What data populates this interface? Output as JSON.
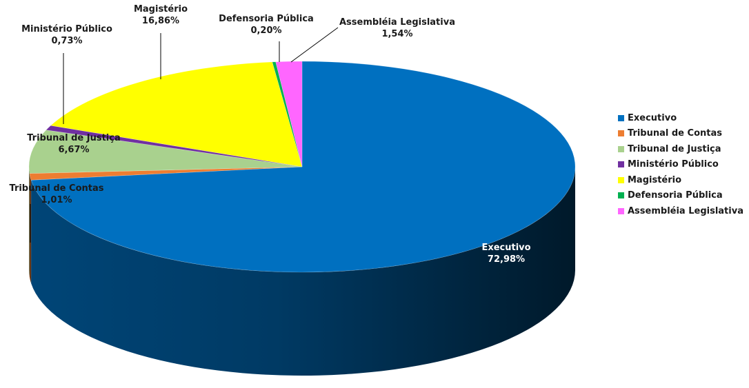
{
  "chart_data": {
    "type": "pie",
    "title": "",
    "slices": [
      {
        "name": "Executivo",
        "value": 72.98,
        "value_label": "72,98%",
        "color": "#0070C0"
      },
      {
        "name": "Tribunal de Contas",
        "value": 1.01,
        "value_label": "1,01%",
        "color": "#ED7D31"
      },
      {
        "name": "Tribunal de Justiça",
        "value": 6.67,
        "value_label": "6,67%",
        "color": "#A9D18E"
      },
      {
        "name": "Ministério Público",
        "value": 0.73,
        "value_label": "0,73%",
        "color": "#7030A0"
      },
      {
        "name": "Magistério",
        "value": 16.86,
        "value_label": "16,86%",
        "color": "#FFFF00"
      },
      {
        "name": "Defensoria Pública",
        "value": 0.2,
        "value_label": "0,20%",
        "color": "#00B050"
      },
      {
        "name": "Assembléia Legislativa",
        "value": 1.54,
        "value_label": "1,54%",
        "color": "#FF66FF"
      }
    ],
    "legend_position": "right",
    "style": "3d"
  }
}
